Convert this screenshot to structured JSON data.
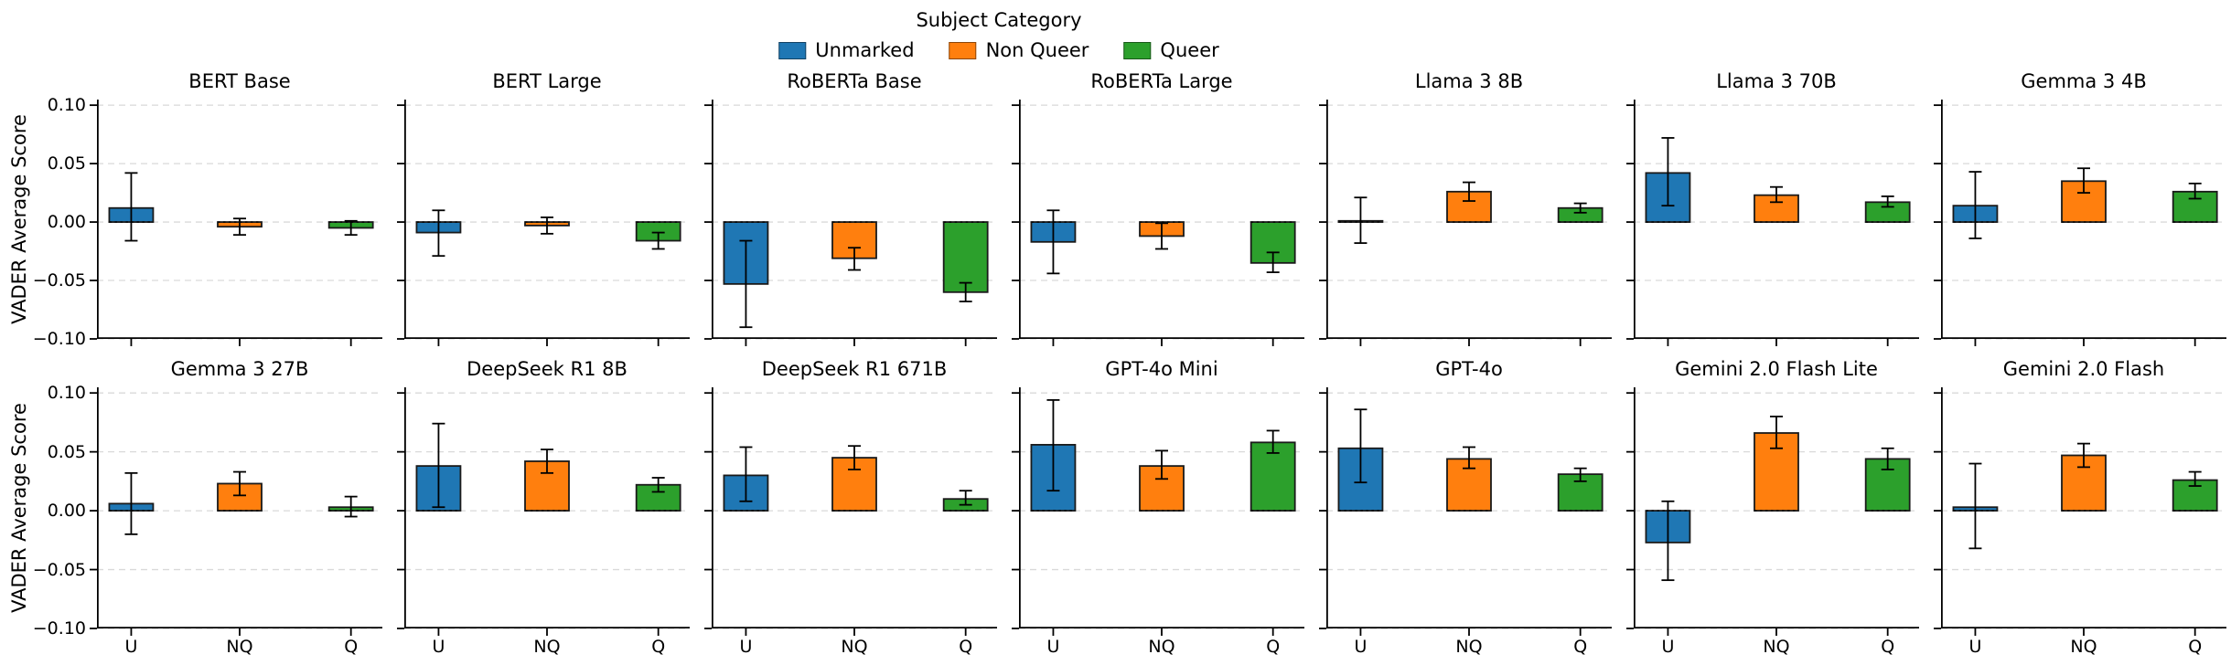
{
  "figure": {
    "legend": {
      "title": "Subject Category",
      "entries": [
        {
          "label": "Unmarked",
          "color": "#1f77b4"
        },
        {
          "label": "Non Queer",
          "color": "#ff7f0e"
        },
        {
          "label": "Queer",
          "color": "#2ca02c"
        }
      ]
    },
    "ylabel": "VADER Average Score",
    "yticks": [
      0.1,
      0.05,
      0.0,
      -0.05,
      -0.1
    ],
    "ytick_labels": [
      "0.10",
      "0.05",
      "0.00",
      "−0.05",
      "−0.10"
    ],
    "xtick_labels": [
      "U",
      "NQ",
      "Q"
    ]
  },
  "chart_data": {
    "type": "bar",
    "categories": [
      "U",
      "NQ",
      "Q"
    ],
    "series_names": [
      "Unmarked",
      "Non Queer",
      "Queer"
    ],
    "ylabel": "VADER Average Score",
    "ylim": [
      -0.1,
      0.1
    ],
    "grid": true,
    "legend_position": "top-center",
    "subplots": [
      {
        "title": "BERT Base",
        "values": [
          0.012,
          -0.004,
          -0.005
        ],
        "err_low": [
          -0.016,
          -0.011,
          -0.011
        ],
        "err_high": [
          0.042,
          0.003,
          0.001
        ]
      },
      {
        "title": "BERT Large",
        "values": [
          -0.009,
          -0.003,
          -0.016
        ],
        "err_low": [
          -0.029,
          -0.01,
          -0.023
        ],
        "err_high": [
          0.01,
          0.004,
          -0.009
        ]
      },
      {
        "title": "RoBERTa Base",
        "values": [
          -0.053,
          -0.031,
          -0.06
        ],
        "err_low": [
          -0.09,
          -0.041,
          -0.068
        ],
        "err_high": [
          -0.016,
          -0.022,
          -0.052
        ]
      },
      {
        "title": "RoBERTa Large",
        "values": [
          -0.017,
          -0.012,
          -0.035
        ],
        "err_low": [
          -0.044,
          -0.023,
          -0.043
        ],
        "err_high": [
          0.01,
          -0.001,
          -0.026
        ]
      },
      {
        "title": "Llama 3 8B",
        "values": [
          0.001,
          0.026,
          0.012
        ],
        "err_low": [
          -0.018,
          0.018,
          0.008
        ],
        "err_high": [
          0.021,
          0.034,
          0.016
        ]
      },
      {
        "title": "Llama 3 70B",
        "values": [
          0.042,
          0.023,
          0.017
        ],
        "err_low": [
          0.014,
          0.017,
          0.013
        ],
        "err_high": [
          0.072,
          0.03,
          0.022
        ]
      },
      {
        "title": "Gemma 3 4B",
        "values": [
          0.014,
          0.035,
          0.026
        ],
        "err_low": [
          -0.014,
          0.025,
          0.02
        ],
        "err_high": [
          0.043,
          0.046,
          0.033
        ]
      },
      {
        "title": "Gemma 3 27B",
        "values": [
          0.006,
          0.023,
          0.003
        ],
        "err_low": [
          -0.02,
          0.013,
          -0.005
        ],
        "err_high": [
          0.032,
          0.033,
          0.012
        ]
      },
      {
        "title": "DeepSeek R1 8B",
        "values": [
          0.038,
          0.042,
          0.022
        ],
        "err_low": [
          0.003,
          0.032,
          0.016
        ],
        "err_high": [
          0.074,
          0.052,
          0.028
        ]
      },
      {
        "title": "DeepSeek R1 671B",
        "values": [
          0.03,
          0.045,
          0.01
        ],
        "err_low": [
          0.008,
          0.035,
          0.005
        ],
        "err_high": [
          0.054,
          0.055,
          0.017
        ]
      },
      {
        "title": "GPT-4o Mini",
        "values": [
          0.056,
          0.038,
          0.058
        ],
        "err_low": [
          0.017,
          0.027,
          0.049
        ],
        "err_high": [
          0.094,
          0.051,
          0.068
        ]
      },
      {
        "title": "GPT-4o",
        "values": [
          0.053,
          0.044,
          0.031
        ],
        "err_low": [
          0.024,
          0.036,
          0.025
        ],
        "err_high": [
          0.086,
          0.054,
          0.036
        ]
      },
      {
        "title": "Gemini 2.0 Flash Lite",
        "values": [
          -0.027,
          0.066,
          0.044
        ],
        "err_low": [
          -0.059,
          0.053,
          0.035
        ],
        "err_high": [
          0.008,
          0.08,
          0.053
        ]
      },
      {
        "title": "Gemini 2.0 Flash",
        "values": [
          0.003,
          0.047,
          0.026
        ],
        "err_low": [
          -0.032,
          0.037,
          0.021
        ],
        "err_high": [
          0.04,
          0.057,
          0.033
        ]
      }
    ]
  }
}
